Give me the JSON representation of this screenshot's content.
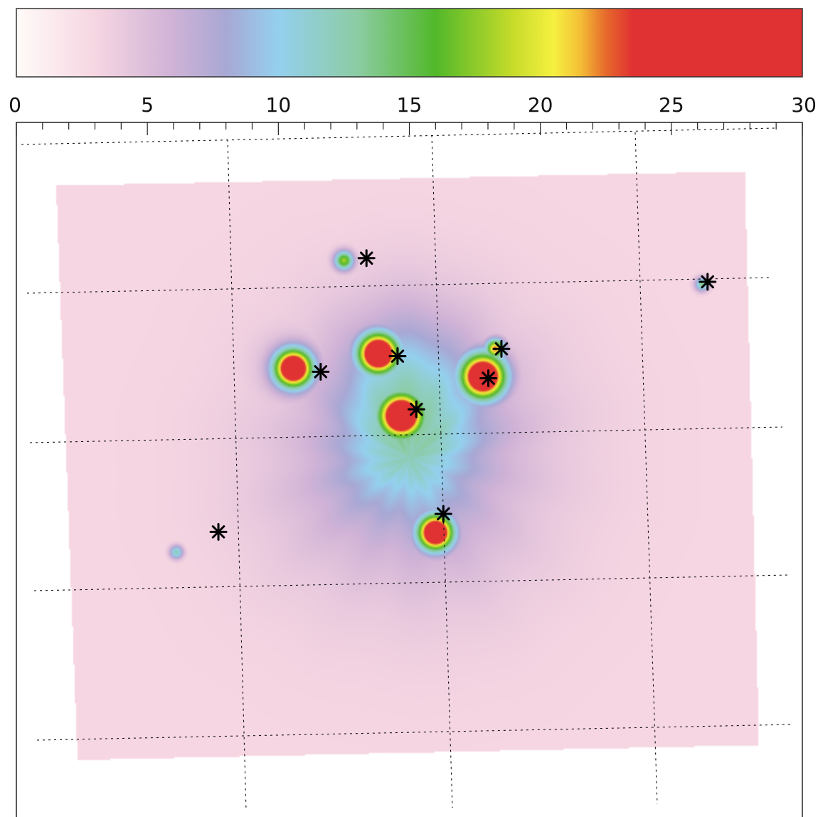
{
  "chart_data": {
    "type": "heatmap",
    "colorbar": {
      "min": 0,
      "max": 30,
      "ticks": [
        0,
        5,
        10,
        15,
        20,
        25,
        30
      ],
      "minor_step": 1,
      "colors": [
        {
          "value": 0,
          "color": "#fffbf8"
        },
        {
          "value": 3,
          "color": "#f6d6e2"
        },
        {
          "value": 6,
          "color": "#cfb2d6"
        },
        {
          "value": 8,
          "color": "#a8a8d4"
        },
        {
          "value": 10,
          "color": "#94d0ee"
        },
        {
          "value": 13,
          "color": "#8ccca4"
        },
        {
          "value": 16,
          "color": "#52b82a"
        },
        {
          "value": 19,
          "color": "#c8dc2a"
        },
        {
          "value": 20.5,
          "color": "#f6f040"
        },
        {
          "value": 21.5,
          "color": "#f4c036"
        },
        {
          "value": 22.5,
          "color": "#e66a2c"
        },
        {
          "value": 23.5,
          "color": "#e03232"
        },
        {
          "value": 30,
          "color": "#e03232"
        }
      ]
    },
    "field": {
      "background_level": 3.0,
      "sources": [
        {
          "name": "core-1",
          "x": 0.358,
          "y": 0.45,
          "value": 28,
          "core_radius": 0.015,
          "halo": 0.07
        },
        {
          "name": "core-2",
          "x": 0.462,
          "y": 0.432,
          "value": 29,
          "core_radius": 0.016,
          "halo": 0.07
        },
        {
          "name": "core-3",
          "x": 0.49,
          "y": 0.508,
          "value": 29,
          "core_radius": 0.018,
          "halo": 0.08
        },
        {
          "name": "core-4",
          "x": 0.59,
          "y": 0.46,
          "value": 28,
          "core_radius": 0.018,
          "halo": 0.07
        },
        {
          "name": "core-5",
          "x": 0.605,
          "y": 0.426,
          "value": 18,
          "core_radius": 0.008,
          "halo": 0.05
        },
        {
          "name": "core-6",
          "x": 0.532,
          "y": 0.651,
          "value": 28,
          "core_radius": 0.014,
          "halo": 0.06
        },
        {
          "name": "core-7",
          "x": 0.42,
          "y": 0.318,
          "value": 14,
          "core_radius": 0.008,
          "halo": 0.05
        },
        {
          "name": "core-8",
          "x": 0.858,
          "y": 0.347,
          "value": 10,
          "core_radius": 0.006,
          "halo": 0.04
        },
        {
          "name": "core-9",
          "x": 0.215,
          "y": 0.675,
          "value": 9,
          "core_radius": 0.006,
          "halo": 0.04
        }
      ]
    },
    "markers": [
      {
        "name": "star-1",
        "x": 0.448,
        "y": 0.316
      },
      {
        "name": "star-2",
        "x": 0.865,
        "y": 0.345
      },
      {
        "name": "star-3",
        "x": 0.392,
        "y": 0.455
      },
      {
        "name": "star-4",
        "x": 0.486,
        "y": 0.436
      },
      {
        "name": "star-5",
        "x": 0.613,
        "y": 0.427
      },
      {
        "name": "star-6",
        "x": 0.597,
        "y": 0.463
      },
      {
        "name": "star-7",
        "x": 0.509,
        "y": 0.501
      },
      {
        "name": "star-8",
        "x": 0.542,
        "y": 0.629
      },
      {
        "name": "star-9",
        "x": 0.267,
        "y": 0.651
      }
    ],
    "grid": true,
    "title": "",
    "xlabel": "",
    "ylabel": ""
  }
}
